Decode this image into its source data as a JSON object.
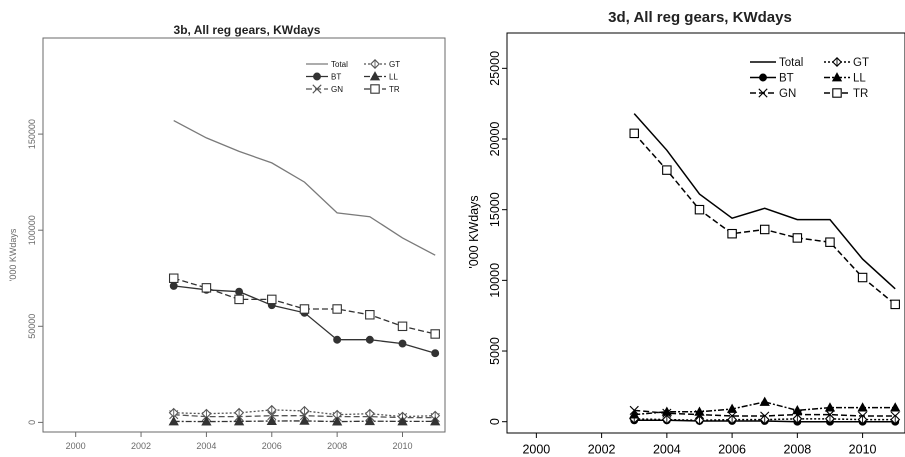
{
  "chart_data": [
    {
      "type": "line",
      "title": "3b, All reg gears, KWdays",
      "ylabel": "'000 KWdays",
      "xlabel": "",
      "xlim": [
        1999,
        2011.3
      ],
      "ylim": [
        -5000,
        200000
      ],
      "x_ticks": [
        2000,
        2002,
        2004,
        2006,
        2008,
        2010
      ],
      "y_ticks": [
        0,
        50000,
        100000,
        150000
      ],
      "legend_position": "top-right",
      "x": [
        2003,
        2004,
        2005,
        2006,
        2007,
        2008,
        2009,
        2010,
        2011
      ],
      "series": [
        {
          "name": "Total",
          "style": "solid",
          "marker": "none",
          "color": "#7a7a7a",
          "values": [
            157000,
            148000,
            141000,
            135000,
            125000,
            109000,
            107000,
            96000,
            87000
          ]
        },
        {
          "name": "BT",
          "style": "solid",
          "marker": "filled-circle",
          "color": "#333333",
          "values": [
            71000,
            69000,
            68000,
            61000,
            57000,
            43000,
            43000,
            41000,
            36000
          ]
        },
        {
          "name": "GN",
          "style": "dashed",
          "marker": "x",
          "color": "#555555",
          "values": [
            4000,
            3000,
            3000,
            3500,
            3500,
            3000,
            3000,
            2500,
            2500
          ]
        },
        {
          "name": "GT",
          "style": "dotted",
          "marker": "open-diamond",
          "color": "#555555",
          "values": [
            5000,
            4500,
            5000,
            6500,
            6000,
            4000,
            4500,
            3000,
            3500
          ]
        },
        {
          "name": "LL",
          "style": "dashdot",
          "marker": "filled-triangle",
          "color": "#333333",
          "values": [
            500,
            400,
            500,
            700,
            800,
            400,
            600,
            500,
            500
          ]
        },
        {
          "name": "TR",
          "style": "dashed",
          "marker": "open-square",
          "color": "#333333",
          "values": [
            75000,
            70000,
            64000,
            64000,
            59000,
            59000,
            56000,
            50000,
            46000
          ]
        }
      ]
    },
    {
      "type": "line",
      "title": "3d, All reg gears, KWdays",
      "ylabel": "'000 KWdays",
      "xlabel": "",
      "xlim": [
        1999.1,
        2011.3
      ],
      "ylim": [
        -800,
        27500
      ],
      "x_ticks": [
        2000,
        2002,
        2004,
        2006,
        2008,
        2010
      ],
      "y_ticks": [
        0,
        5000,
        10000,
        15000,
        20000,
        25000
      ],
      "legend_position": "top-right",
      "x": [
        2003,
        2004,
        2005,
        2006,
        2007,
        2008,
        2009,
        2010,
        2011
      ],
      "series": [
        {
          "name": "Total",
          "style": "solid",
          "marker": "none",
          "color": "#000000",
          "values": [
            21800,
            19200,
            16100,
            14400,
            15100,
            14300,
            14300,
            11500,
            9400
          ]
        },
        {
          "name": "BT",
          "style": "solid",
          "marker": "filled-circle",
          "color": "#000000",
          "values": [
            100,
            100,
            50,
            50,
            50,
            0,
            0,
            0,
            0
          ]
        },
        {
          "name": "GN",
          "style": "dashed",
          "marker": "x",
          "color": "#000000",
          "values": [
            800,
            600,
            500,
            400,
            400,
            500,
            500,
            400,
            400
          ]
        },
        {
          "name": "GT",
          "style": "dotted",
          "marker": "open-diamond",
          "color": "#000000",
          "values": [
            200,
            150,
            100,
            150,
            150,
            200,
            200,
            150,
            150
          ]
        },
        {
          "name": "LL",
          "style": "dashdot",
          "marker": "filled-triangle",
          "color": "#000000",
          "values": [
            500,
            700,
            700,
            900,
            1400,
            800,
            1000,
            1000,
            1000
          ]
        },
        {
          "name": "TR",
          "style": "dashed",
          "marker": "open-square",
          "color": "#000000",
          "values": [
            20400,
            17800,
            15000,
            13300,
            13600,
            13000,
            12700,
            10200,
            8300
          ]
        }
      ]
    }
  ]
}
